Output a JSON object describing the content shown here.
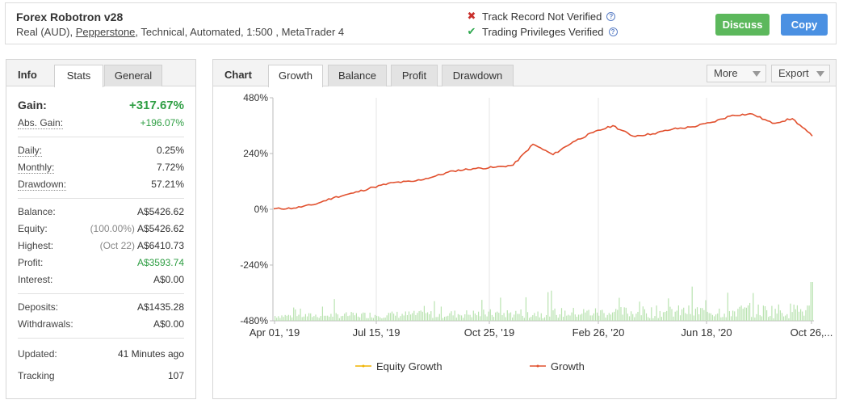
{
  "header": {
    "system_name": "Forex Robotron v28",
    "sub_prefix": "Real (AUD), ",
    "broker": "Pepperstone",
    "sub_suffix": ", Technical, Automated, 1:500 , MetaTrader 4",
    "track_record": "Track Record Not Verified",
    "trading_privileges": "Trading Privileges Verified",
    "discuss_label": "Discuss",
    "copy_label": "Copy"
  },
  "info": {
    "title": "Info",
    "tabs": [
      "Stats",
      "General"
    ],
    "active_tab": "Stats",
    "gain_label": "Gain:",
    "gain_value": "+317.67%",
    "abs_gain_label": "Abs. Gain:",
    "abs_gain_value": "+196.07%",
    "daily_label": "Daily:",
    "daily_value": "0.25%",
    "monthly_label": "Monthly:",
    "monthly_value": "7.72%",
    "drawdown_label": "Drawdown:",
    "drawdown_value": "57.21%",
    "balance_label": "Balance:",
    "balance_value": "A$5426.62",
    "equity_label": "Equity:",
    "equity_pct": "(100.00%)",
    "equity_value": "A$5426.62",
    "highest_label": "Highest:",
    "highest_date": "(Oct 22)",
    "highest_value": "A$6410.73",
    "profit_label": "Profit:",
    "profit_value": "A$3593.74",
    "interest_label": "Interest:",
    "interest_value": "A$0.00",
    "deposits_label": "Deposits:",
    "deposits_value": "A$1435.28",
    "withdrawals_label": "Withdrawals:",
    "withdrawals_value": "A$0.00",
    "updated_label": "Updated:",
    "updated_value": "41 Minutes ago",
    "tracking_label": "Tracking",
    "tracking_value": "107"
  },
  "chart_panel": {
    "title": "Chart",
    "tabs": [
      "Growth",
      "Balance",
      "Profit",
      "Drawdown"
    ],
    "active_tab": "Growth",
    "more_label": "More",
    "export_label": "Export"
  },
  "colors": {
    "growth_line": "#e1502e",
    "equity_line": "#f0b400",
    "volume_bars": "#b9e3b0",
    "gain_green": "#2e9e43",
    "discuss_button": "#5cb85c",
    "copy_button": "#4a90e2"
  },
  "chart_data": {
    "type": "line",
    "y_ticks": [
      "480%",
      "240%",
      "0%",
      "-240%",
      "-480%"
    ],
    "ylim": [
      -480,
      480
    ],
    "x_ticks": [
      "Apr 01, '19",
      "Jul 15, '19",
      "Oct 25, '19",
      "Feb 26, '20",
      "Jun 18, '20",
      "Oct 26,..."
    ],
    "series": [
      {
        "name": "Equity Growth",
        "values": []
      },
      {
        "name": "Growth",
        "x": [
          "Apr 01, '19",
          "May 01, '19",
          "Jun 01, '19",
          "Jul 01, '19",
          "Jul 15, '19",
          "Aug 15, '19",
          "Sep 15, '19",
          "Oct 25, '19",
          "Nov 25, '19",
          "Dec 25, '19",
          "Jan 25, '20",
          "Feb 20, '20",
          "Feb 26, '20",
          "Mar 10, '20",
          "Mar 20, '20",
          "Apr 01, '20",
          "Apr 20, '20",
          "May 20, '20",
          "Jun 10, '20",
          "Jun 18, '20",
          "Jul 20, '20",
          "Aug 20, '20",
          "Sep 20, '20",
          "Oct 01, '20",
          "Oct 10, '20",
          "Oct 20, '20",
          "Oct 26, '20",
          "Oct 30, '20"
        ],
        "values": [
          2,
          5,
          20,
          50,
          70,
          95,
          115,
          120,
          140,
          165,
          175,
          180,
          190,
          280,
          235,
          290,
          330,
          360,
          315,
          325,
          345,
          355,
          375,
          405,
          410,
          370,
          390,
          315
        ]
      }
    ],
    "volume_bars": "daily trade-volume bars along the bottom of the plot (unlabeled)",
    "legend": [
      "Equity Growth",
      "Growth"
    ],
    "legend_position": "bottom",
    "grid": "vertical lines at x ticks",
    "title": "",
    "xlabel": "",
    "ylabel": ""
  }
}
